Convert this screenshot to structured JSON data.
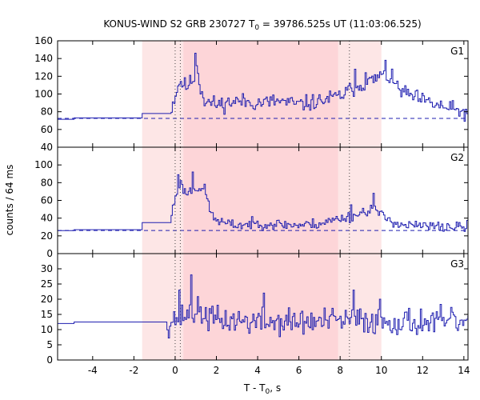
{
  "chart_data": {
    "type": "line",
    "title_main": "KONUS-WIND S2 GRB 230727 T",
    "title_sub": "0",
    "title_rest": " = 39786.525s UT (11:03:06.525)",
    "xlabel_main": "T - T",
    "xlabel_sub": "0",
    "xlabel_rest": ", s",
    "ylabel": "counts / 64 ms",
    "xlim": [
      -5.7,
      14.2
    ],
    "xticks": [
      -4,
      -2,
      0,
      2,
      4,
      6,
      8,
      10,
      12,
      14
    ],
    "shaded_intervals": [
      {
        "start": -1.6,
        "end": 10.0,
        "color": "#fde6e6"
      },
      {
        "start": 0.4,
        "end": 7.9,
        "color": "#fdd5d8"
      }
    ],
    "vertical_dotted_lines": [
      0.0,
      0.25,
      8.45
    ],
    "series_color": "#1f1fb0",
    "panels": [
      {
        "name": "G1",
        "ylim": [
          40,
          160
        ],
        "yticks": [
          40,
          60,
          80,
          100,
          120,
          140,
          160
        ],
        "background_level": 72.5,
        "pre_trigger": [
          {
            "from": -5.7,
            "to": -4.9,
            "value": 71.5
          },
          {
            "from": -4.9,
            "to": -1.6,
            "value": 73
          },
          {
            "from": -1.6,
            "to": -0.2,
            "value": 78
          }
        ],
        "envelope": [
          [
            -0.2,
            85
          ],
          [
            0.2,
            115
          ],
          [
            0.5,
            108
          ],
          [
            0.9,
            118
          ],
          [
            1.0,
            132
          ],
          [
            1.4,
            92
          ],
          [
            2.0,
            88
          ],
          [
            3.0,
            92
          ],
          [
            4.0,
            90
          ],
          [
            5.0,
            92
          ],
          [
            6.0,
            88
          ],
          [
            7.0,
            92
          ],
          [
            8.0,
            98
          ],
          [
            8.5,
            105
          ],
          [
            9.2,
            112
          ],
          [
            9.8,
            118
          ],
          [
            10.3,
            120
          ],
          [
            11.0,
            102
          ],
          [
            12.0,
            92
          ],
          [
            13.0,
            85
          ],
          [
            14.2,
            78
          ]
        ],
        "noise": 9,
        "seed": 11,
        "peaks": [
          [
            0.95,
            146
          ],
          [
            1.2,
            100
          ],
          [
            10.2,
            138
          ],
          [
            9.2,
            124
          ],
          [
            8.7,
            128
          ],
          [
            9.9,
            125
          ]
        ]
      },
      {
        "name": "G2",
        "ylim": [
          0,
          120
        ],
        "yticks": [
          0,
          20,
          40,
          60,
          80,
          100
        ],
        "background_level": 26,
        "pre_trigger": [
          {
            "from": -5.7,
            "to": -4.9,
            "value": 26
          },
          {
            "from": -4.9,
            "to": -1.6,
            "value": 27
          },
          {
            "from": -1.6,
            "to": -0.2,
            "value": 35
          }
        ],
        "envelope": [
          [
            -0.2,
            45
          ],
          [
            0.0,
            65
          ],
          [
            0.2,
            80
          ],
          [
            0.5,
            68
          ],
          [
            1.0,
            75
          ],
          [
            1.4,
            72
          ],
          [
            1.8,
            40
          ],
          [
            2.5,
            33
          ],
          [
            3.0,
            32
          ],
          [
            4.0,
            34
          ],
          [
            5.0,
            33
          ],
          [
            6.0,
            32
          ],
          [
            7.0,
            34
          ],
          [
            8.0,
            40
          ],
          [
            8.6,
            42
          ],
          [
            9.2,
            48
          ],
          [
            9.6,
            52
          ],
          [
            10.0,
            42
          ],
          [
            11.0,
            32
          ],
          [
            12.0,
            31
          ],
          [
            13.0,
            30
          ],
          [
            14.2,
            30
          ]
        ],
        "noise": 6,
        "seed": 23,
        "peaks": [
          [
            0.15,
            89
          ],
          [
            0.8,
            92
          ],
          [
            9.6,
            68
          ],
          [
            8.5,
            55
          ]
        ]
      },
      {
        "name": "G3",
        "ylim": [
          0,
          35
        ],
        "yticks": [
          0,
          5,
          10,
          15,
          20,
          25,
          30
        ],
        "background_level": null,
        "pre_trigger": [
          {
            "from": -5.7,
            "to": -4.9,
            "value": 12
          },
          {
            "from": -4.9,
            "to": -1.6,
            "value": 12.5
          },
          {
            "from": -1.6,
            "to": -0.4,
            "value": 12.5
          }
        ],
        "envelope": [
          [
            -0.4,
            12
          ],
          [
            0.0,
            14
          ],
          [
            0.5,
            15
          ],
          [
            1.0,
            16
          ],
          [
            2.0,
            13
          ],
          [
            3.0,
            13
          ],
          [
            4.0,
            12.5
          ],
          [
            5.0,
            12.5
          ],
          [
            6.0,
            12.5
          ],
          [
            7.0,
            12.5
          ],
          [
            8.0,
            13
          ],
          [
            9.0,
            13
          ],
          [
            10.0,
            13
          ],
          [
            11.0,
            12.5
          ],
          [
            12.0,
            12.5
          ],
          [
            13.0,
            12.5
          ],
          [
            14.2,
            12.5
          ]
        ],
        "noise": 4.5,
        "seed": 37,
        "peaks": [
          [
            0.75,
            28
          ],
          [
            0.2,
            23
          ],
          [
            4.3,
            22
          ],
          [
            8.6,
            23
          ],
          [
            9.9,
            20
          ]
        ]
      }
    ]
  }
}
